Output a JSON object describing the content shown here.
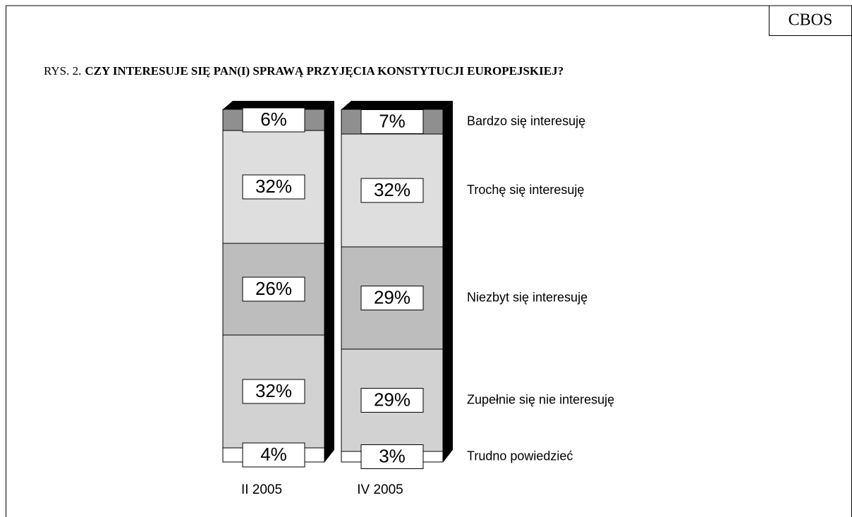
{
  "header": {
    "brand": "CBOS"
  },
  "chart_data": {
    "type": "stacked_bar",
    "title_prefix": "RYS. 2.",
    "title": "CZY INTERESUJE SIĘ PAN(I) SPRAWĄ PRZYJĘCIA KONSTYTUCJI EUROPEJSKIEJ?",
    "categories": [
      "II 2005",
      "IV 2005"
    ],
    "series": [
      {
        "name": "Trudno powiedzieć",
        "color": "#ffffff",
        "values": [
          4,
          3
        ],
        "value_labels": [
          "4%",
          "3%"
        ]
      },
      {
        "name": "Zupełnie się nie interesuję",
        "color": "#d2d2d2",
        "values": [
          32,
          29
        ],
        "value_labels": [
          "32%",
          "29%"
        ]
      },
      {
        "name": "Niezbyt się interesuję",
        "color": "#bdbdbd",
        "values": [
          26,
          29
        ],
        "value_labels": [
          "26%",
          "29%"
        ]
      },
      {
        "name": "Trochę się interesuję",
        "color": "#dedede",
        "values": [
          32,
          32
        ],
        "value_labels": [
          "32%",
          "32%"
        ]
      },
      {
        "name": "Bardzo się interesuję",
        "color": "#8f8f8f",
        "values": [
          6,
          7
        ],
        "value_labels": [
          "6%",
          "7%"
        ]
      }
    ]
  }
}
